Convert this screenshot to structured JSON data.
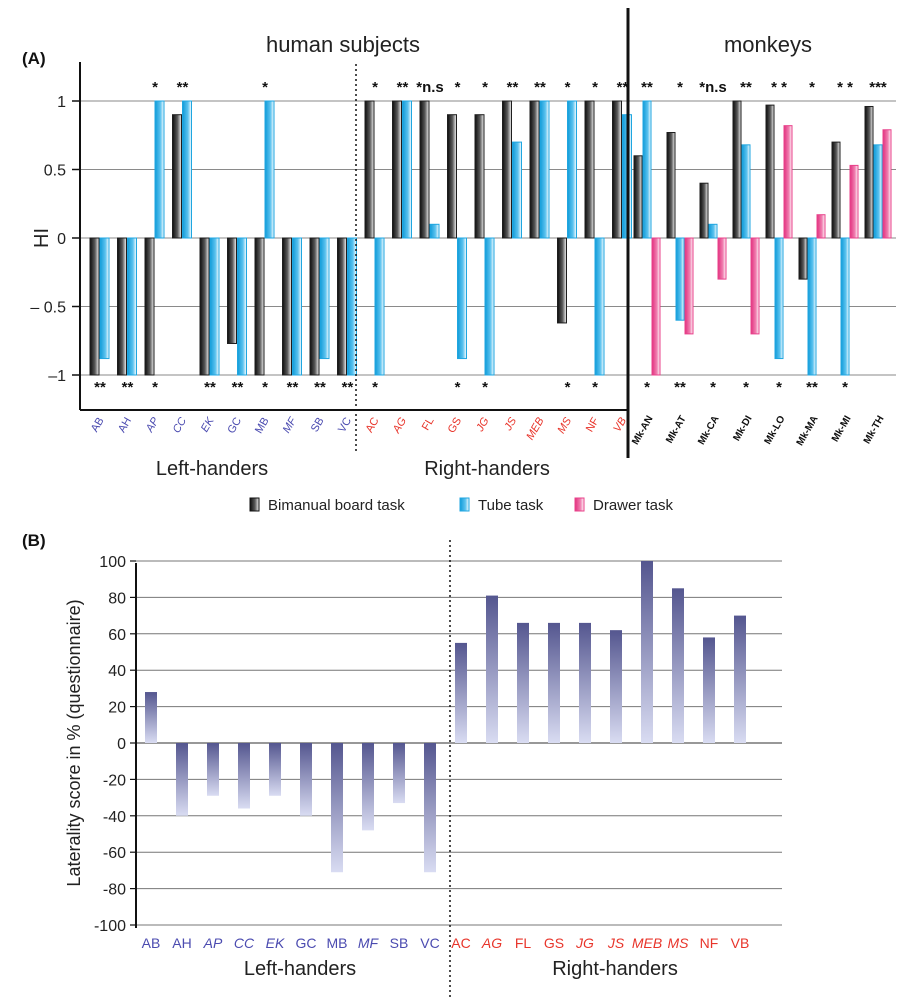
{
  "chart_data": [
    {
      "panel": "(A)",
      "type": "bar",
      "ylabel": "HI",
      "ylim": [
        -1.25,
        1.25
      ],
      "yticks": [
        "1",
        "0.5",
        "0",
        "– 0.5",
        "–1"
      ],
      "group_titles": {
        "human": "human subjects",
        "monkey": "monkeys"
      },
      "group_labels": [
        "Left-handers",
        "Right-handers"
      ],
      "legend": [
        {
          "name": "Bimanual board task",
          "color": "#2a2a2a"
        },
        {
          "name": "Tube task",
          "color": "#29a9e1"
        },
        {
          "name": "Drawer task",
          "color": "#e8458b"
        }
      ],
      "series_colors": {
        "bimanual": "#1e1e1e",
        "tube": "#1fa6e0",
        "drawer": "#e8408a"
      },
      "subjects": [
        {
          "label": "AB",
          "color": "#4b4bb0",
          "italic": false,
          "bimanual": -1,
          "tube": -0.88,
          "top": "",
          "bottom": "**"
        },
        {
          "label": "AH",
          "color": "#4b4bb0",
          "italic": false,
          "bimanual": -1,
          "tube": -1,
          "top": "",
          "bottom": "**"
        },
        {
          "label": "AP",
          "color": "#4b4bb0",
          "italic": true,
          "bimanual": -1,
          "tube": 1,
          "top": "*",
          "bottom": "*"
        },
        {
          "label": "CC",
          "color": "#4b4bb0",
          "italic": true,
          "bimanual": 0.9,
          "tube": 1,
          "top": "**",
          "bottom": ""
        },
        {
          "label": "EK",
          "color": "#4b4bb0",
          "italic": true,
          "bimanual": -1,
          "tube": -1,
          "top": "",
          "bottom": "**"
        },
        {
          "label": "GC",
          "color": "#4b4bb0",
          "italic": false,
          "bimanual": -0.77,
          "tube": -1,
          "top": "",
          "bottom": "**"
        },
        {
          "label": "MB",
          "color": "#4b4bb0",
          "italic": false,
          "bimanual": -1,
          "tube": 1,
          "top": "*",
          "bottom": "*"
        },
        {
          "label": "MF",
          "color": "#4b4bb0",
          "italic": true,
          "bimanual": -1,
          "tube": -1,
          "top": "",
          "bottom": "**"
        },
        {
          "label": "SB",
          "color": "#4b4bb0",
          "italic": false,
          "bimanual": -1,
          "tube": -0.88,
          "top": "",
          "bottom": "**"
        },
        {
          "label": "VC",
          "color": "#4b4bb0",
          "italic": false,
          "bimanual": -1,
          "tube": -1,
          "top": "",
          "bottom": "**"
        },
        {
          "label": "AC",
          "color": "#e8352b",
          "italic": false,
          "bimanual": 1,
          "tube": -1,
          "top": "*",
          "bottom": "*"
        },
        {
          "label": "AG",
          "color": "#e8352b",
          "italic": true,
          "bimanual": 1,
          "tube": 1,
          "top": "**",
          "bottom": ""
        },
        {
          "label": "FL",
          "color": "#e8352b",
          "italic": false,
          "bimanual": 1,
          "tube": 0.1,
          "top": "*n.s",
          "bottom": ""
        },
        {
          "label": "GS",
          "color": "#e8352b",
          "italic": false,
          "bimanual": 0.9,
          "tube": -0.88,
          "top": "*",
          "bottom": "*"
        },
        {
          "label": "JG",
          "color": "#e8352b",
          "italic": true,
          "bimanual": 0.9,
          "tube": -1,
          "top": "*",
          "bottom": "*"
        },
        {
          "label": "JS",
          "color": "#e8352b",
          "italic": true,
          "bimanual": 1,
          "tube": 0.7,
          "top": "**",
          "bottom": ""
        },
        {
          "label": "MEB",
          "color": "#e8352b",
          "italic": true,
          "bimanual": 1,
          "tube": 1,
          "top": "**",
          "bottom": ""
        },
        {
          "label": "MS",
          "color": "#e8352b",
          "italic": true,
          "bimanual": -0.62,
          "tube": 1,
          "top": "*",
          "bottom": "*"
        },
        {
          "label": "NF",
          "color": "#e8352b",
          "italic": false,
          "bimanual": 1,
          "tube": -1,
          "top": "*",
          "bottom": "*"
        },
        {
          "label": "VB",
          "color": "#e8352b",
          "italic": true,
          "bimanual": 1,
          "tube": 0.9,
          "top": "**",
          "bottom": ""
        }
      ],
      "monkeys": [
        {
          "label": "Mk-AN",
          "bimanual": 0.6,
          "tube": 1,
          "drawer": -1,
          "top": "**",
          "bottom": "*"
        },
        {
          "label": "Mk-AT",
          "bimanual": 0.77,
          "tube": -0.6,
          "drawer": -0.7,
          "top": "*",
          "bottom": "**"
        },
        {
          "label": "Mk-CA",
          "bimanual": 0.4,
          "tube": 0.1,
          "drawer": -0.3,
          "top": "*n.s",
          "bottom": "*"
        },
        {
          "label": "Mk-DI",
          "bimanual": 1,
          "tube": 0.68,
          "drawer": -0.7,
          "top": "**",
          "bottom": "*"
        },
        {
          "label": "Mk-LO",
          "bimanual": 0.97,
          "tube": -0.88,
          "drawer": 0.82,
          "top": "* *",
          "bottom": "*"
        },
        {
          "label": "Mk-MA",
          "bimanual": -0.3,
          "tube": -1,
          "drawer": 0.17,
          "top": "*",
          "bottom": "**"
        },
        {
          "label": "Mk-MI",
          "bimanual": 0.7,
          "tube": -1,
          "drawer": 0.53,
          "top": "* *",
          "bottom": "*"
        },
        {
          "label": "Mk-TH",
          "bimanual": 0.96,
          "tube": 0.68,
          "drawer": 0.79,
          "top": "***",
          "bottom": ""
        }
      ]
    },
    {
      "panel": "(B)",
      "type": "bar",
      "ylabel": "Laterality score in % (questionnaire)",
      "ylim": [
        -100,
        100
      ],
      "yticks": [
        "100",
        "80",
        "60",
        "40",
        "20",
        "0",
        "-20",
        "-40",
        "-60",
        "-80",
        "-100"
      ],
      "bar_color": "#5d5f9c",
      "group_labels": [
        "Left-handers",
        "Right-handers"
      ],
      "subjects": [
        {
          "label": "AB",
          "color": "#4b4bb0",
          "italic": false,
          "value": 28
        },
        {
          "label": "AH",
          "color": "#4b4bb0",
          "italic": false,
          "value": -40
        },
        {
          "label": "AP",
          "color": "#4b4bb0",
          "italic": true,
          "value": -29
        },
        {
          "label": "CC",
          "color": "#4b4bb0",
          "italic": true,
          "value": -36
        },
        {
          "label": "EK",
          "color": "#4b4bb0",
          "italic": true,
          "value": -29
        },
        {
          "label": "GC",
          "color": "#4b4bb0",
          "italic": false,
          "value": -40
        },
        {
          "label": "MB",
          "color": "#4b4bb0",
          "italic": false,
          "value": -71
        },
        {
          "label": "MF",
          "color": "#4b4bb0",
          "italic": true,
          "value": -48
        },
        {
          "label": "SB",
          "color": "#4b4bb0",
          "italic": false,
          "value": -33
        },
        {
          "label": "VC",
          "color": "#4b4bb0",
          "italic": false,
          "value": -71
        },
        {
          "label": "AC",
          "color": "#e8352b",
          "italic": false,
          "value": 55
        },
        {
          "label": "AG",
          "color": "#e8352b",
          "italic": true,
          "value": 81
        },
        {
          "label": "FL",
          "color": "#e8352b",
          "italic": false,
          "value": 66
        },
        {
          "label": "GS",
          "color": "#e8352b",
          "italic": false,
          "value": 66
        },
        {
          "label": "JG",
          "color": "#e8352b",
          "italic": true,
          "value": 66
        },
        {
          "label": "JS",
          "color": "#e8352b",
          "italic": true,
          "value": 62
        },
        {
          "label": "MEB",
          "color": "#e8352b",
          "italic": true,
          "value": 100
        },
        {
          "label": "MS",
          "color": "#e8352b",
          "italic": true,
          "value": 85
        },
        {
          "label": "NF",
          "color": "#e8352b",
          "italic": false,
          "value": 58
        },
        {
          "label": "VB",
          "color": "#e8352b",
          "italic": false,
          "value": 70
        }
      ]
    }
  ]
}
